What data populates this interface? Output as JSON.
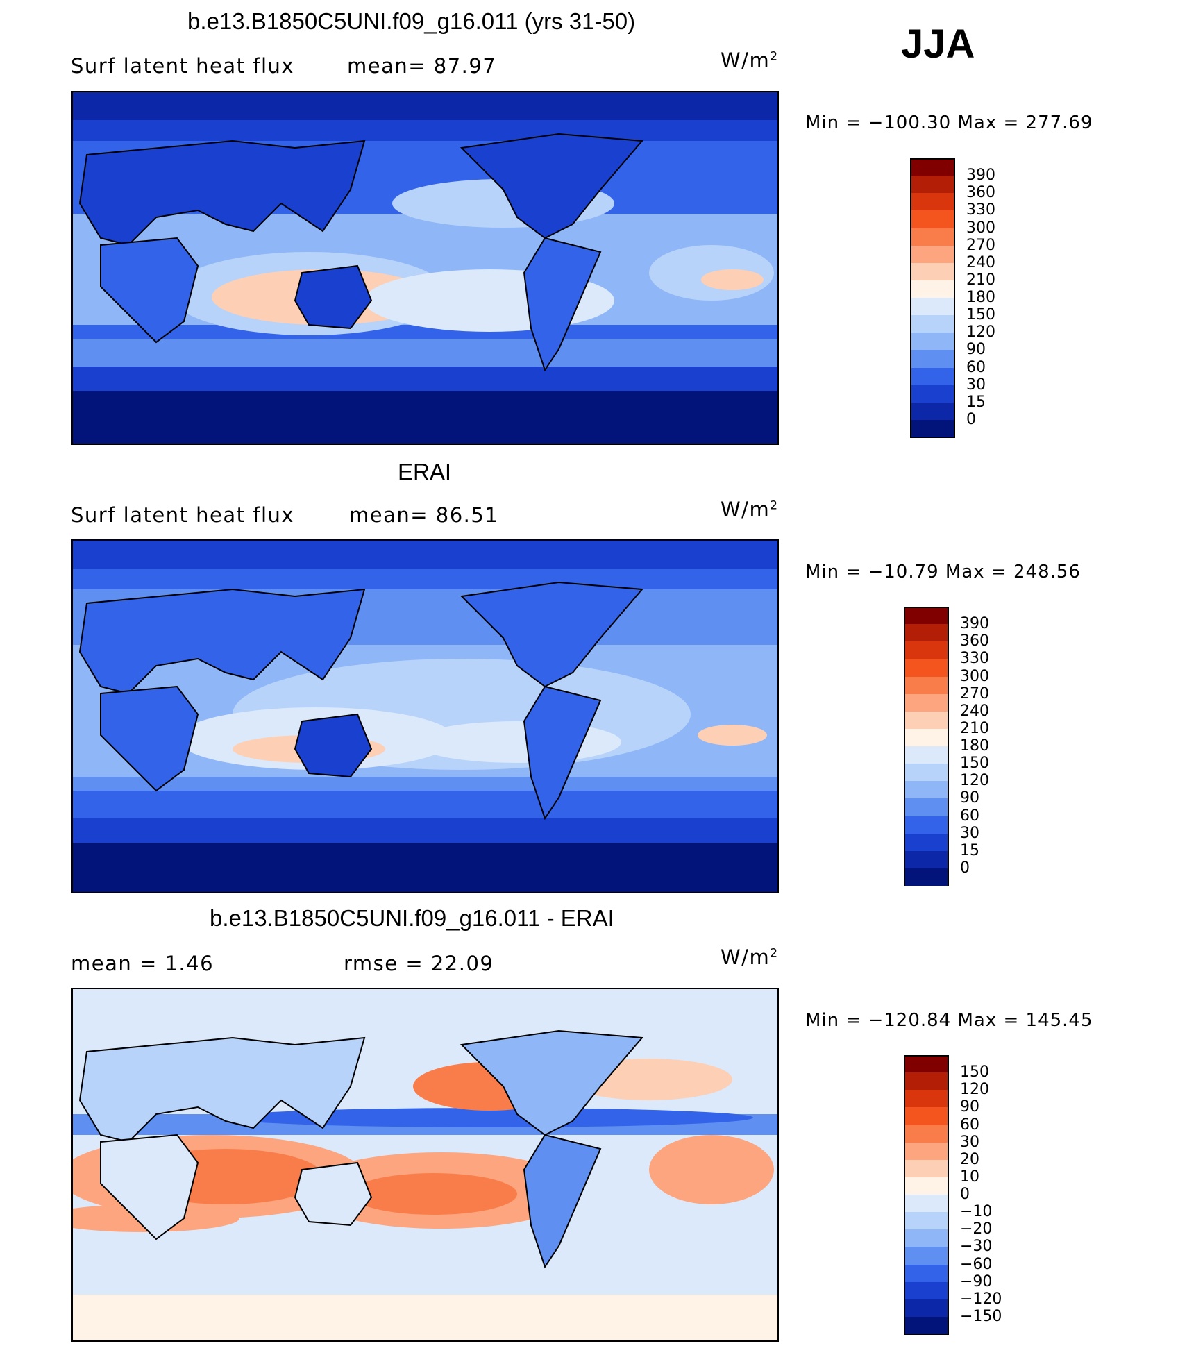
{
  "season": "JJA",
  "panels": [
    {
      "id": "model",
      "title": "b.e13.B1850C5UNI.f09_g16.011 (yrs 31-50)",
      "left_label": "Surf  latent  heat  flux",
      "mid_label": "mean=  87.97",
      "units_base": "W/m",
      "units_exp": "2",
      "minmax": "Min  =  −100.30  Max  =  277.69",
      "scale": "abs"
    },
    {
      "id": "obs",
      "title": "ERAI",
      "left_label": "Surf  latent  heat  flux",
      "mid_label": "mean=  86.51",
      "units_base": "W/m",
      "units_exp": "2",
      "minmax": "Min  =  −10.79  Max  =  248.56",
      "scale": "abs"
    },
    {
      "id": "diff",
      "title": "b.e13.B1850C5UNI.f09_g16.011 - ERAI",
      "left_label": "mean  =     1.46",
      "mid_label": "rmse  =    22.09",
      "units_base": "W/m",
      "units_exp": "2",
      "minmax": "Min  =  −120.84  Max  =  145.45",
      "scale": "diff"
    }
  ],
  "colorbars": {
    "abs": {
      "labels": [
        "390",
        "360",
        "330",
        "300",
        "270",
        "240",
        "210",
        "180",
        "150",
        "120",
        "90",
        "60",
        "30",
        "15",
        "0"
      ],
      "colors": [
        "#800000",
        "#b31e06",
        "#d9360d",
        "#f4541d",
        "#f97d4b",
        "#fca57e",
        "#fdd0b5",
        "#fff2e6",
        "#dbe9fb",
        "#b8d3fa",
        "#8fb6f6",
        "#5f8ff0",
        "#3263e8",
        "#1a40cf",
        "#0c27a8",
        "#02137a"
      ]
    },
    "diff": {
      "labels": [
        "150",
        "120",
        "90",
        "60",
        "30",
        "20",
        "10",
        "0",
        "−10",
        "−20",
        "−30",
        "−60",
        "−90",
        "−120",
        "−150"
      ],
      "colors": [
        "#800000",
        "#b31e06",
        "#d9360d",
        "#f4541d",
        "#f97d4b",
        "#fca57e",
        "#fdd0b5",
        "#fff2e6",
        "#dbe9fb",
        "#b8d3fa",
        "#8fb6f6",
        "#5f8ff0",
        "#3263e8",
        "#1a40cf",
        "#0c27a8",
        "#02137a"
      ]
    }
  }
}
